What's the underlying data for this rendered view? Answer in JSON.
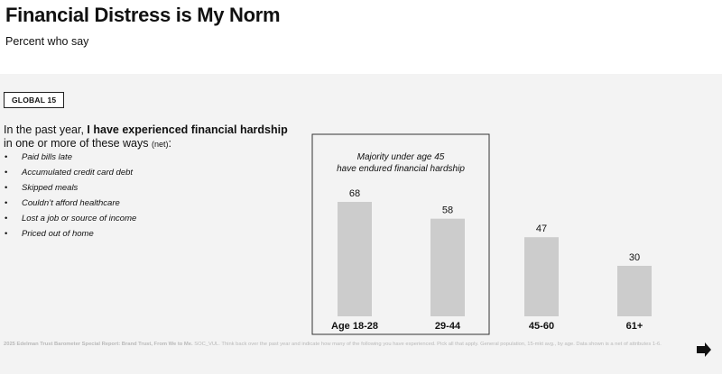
{
  "header": {
    "title": "Financial Distress is My Norm",
    "subtitle": "Percent who say"
  },
  "badge": "GLOBAL 15",
  "question": {
    "lead": "In the past year, ",
    "bold": "I have experienced financial hardship",
    "rest": "in one or more of these ways ",
    "net": "(net)",
    "colon": ":"
  },
  "bullets": [
    "Paid bills late",
    "Accumulated credit card debt",
    "Skipped meals",
    "Couldn’t afford healthcare",
    "Lost a job or source of income",
    "Priced out of home"
  ],
  "callout": {
    "line1": "Majority under age 45",
    "line2": "have endured financial hardship"
  },
  "chart_data": {
    "type": "bar",
    "categories": [
      "Age 18-28",
      "29-44",
      "45-60",
      "61+"
    ],
    "values": [
      68,
      58,
      47,
      30
    ],
    "bar_color": "#cccccc",
    "highlighted_categories": [
      "Age 18-28",
      "29-44"
    ],
    "ylim": [
      0,
      68
    ],
    "grid": false
  },
  "footnote": {
    "bold": "2025 Edelman Trust Barometer Special Report: Brand Trust, From We to Me.",
    "text": " SOC_VUL. Think back over the past year and indicate how many of the following you have experienced. Pick all that apply. General population, 15-mkt avg., by age. Data shown is a net of attributes 1-6."
  },
  "icons": {
    "next": "arrow-down-right-icon"
  }
}
